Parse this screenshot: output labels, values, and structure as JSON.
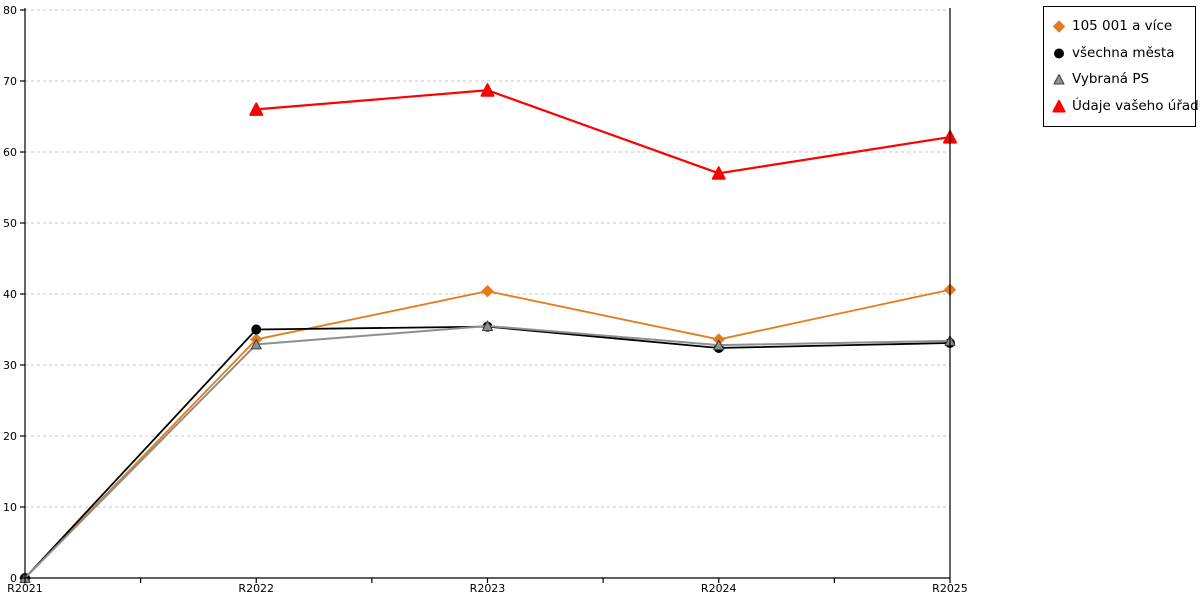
{
  "chart_data": {
    "type": "line",
    "title": "",
    "x_categories": [
      "R2021",
      "R2022",
      "R2023",
      "R2024",
      "R2025"
    ],
    "y_ticks": [
      0,
      10,
      20,
      30,
      40,
      50,
      60,
      70,
      80
    ],
    "ylim": [
      0,
      80
    ],
    "grid": "horizontal-dashed",
    "legend_position": "outside-top-right",
    "axis_color": "#000000",
    "gridline_color": "#c5c5c5",
    "background": "#ffffff",
    "draw_order": [
      0,
      1,
      2,
      3
    ],
    "series": [
      {
        "name": "105 001 a více",
        "marker": "diamond",
        "color": "#e27d1e",
        "line_width": 1.8,
        "marker_size": 11,
        "values": [
          0,
          33.6,
          40.4,
          33.6,
          40.6
        ]
      },
      {
        "name": "všechna města",
        "marker": "circle",
        "color": "#000000",
        "line_width": 1.8,
        "marker_size": 11,
        "values": [
          0,
          35.0,
          35.4,
          32.4,
          33.1
        ]
      },
      {
        "name": "Vybraná PS",
        "marker": "triangle",
        "color": "#8e8e8e",
        "marker_edge": "#3f3f3f",
        "line_width": 2,
        "marker_size": 11,
        "values": [
          0,
          32.9,
          35.5,
          32.8,
          33.4
        ]
      },
      {
        "name": "Údaje vašeho úřadu",
        "marker": "triangle",
        "color": "#fb0202",
        "line_width": 2.2,
        "marker_size": 13,
        "values": [
          null,
          66.0,
          68.7,
          57.0,
          62.1
        ]
      }
    ]
  }
}
